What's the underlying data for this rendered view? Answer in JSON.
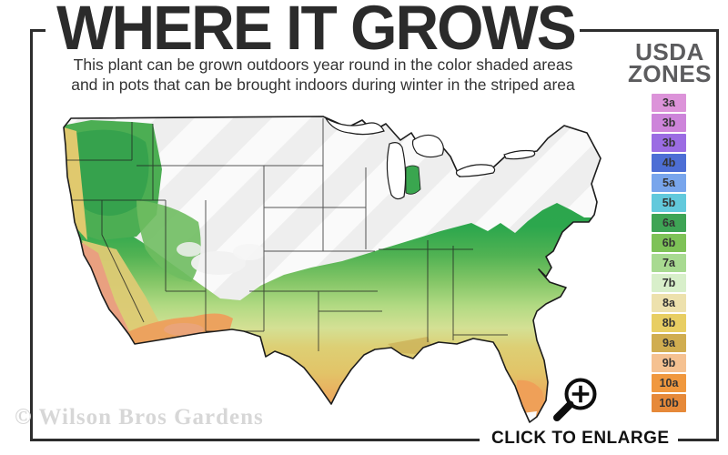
{
  "title": "WHERE IT GROWS",
  "subtitle": {
    "line1": "This plant can be grown outdoors year round in the color shaded areas",
    "line2": "and in pots that can be brought indoors during winter in the striped area"
  },
  "legend": {
    "heading_line1": "USDA",
    "heading_line2": "ZONES",
    "zones": [
      {
        "label": "3a",
        "color": "#dc93d9"
      },
      {
        "label": "3b",
        "color": "#cd84da"
      },
      {
        "label": "3b",
        "color": "#9b6ce3"
      },
      {
        "label": "4b",
        "color": "#4d6ed5"
      },
      {
        "label": "5a",
        "color": "#78a5ec"
      },
      {
        "label": "5b",
        "color": "#62c9dc"
      },
      {
        "label": "6a",
        "color": "#3ea455"
      },
      {
        "label": "6b",
        "color": "#7ec257"
      },
      {
        "label": "7a",
        "color": "#a8da91"
      },
      {
        "label": "7b",
        "color": "#d8efca"
      },
      {
        "label": "8a",
        "color": "#ede1ad"
      },
      {
        "label": "8b",
        "color": "#e8ce63"
      },
      {
        "label": "9a",
        "color": "#d0ad50"
      },
      {
        "label": "9b",
        "color": "#f5c191"
      },
      {
        "label": "10a",
        "color": "#f0983e"
      },
      {
        "label": "10b",
        "color": "#e68939"
      }
    ]
  },
  "watermark": "© Wilson Bros Gardens",
  "enlarge_label": "CLICK TO ENLARGE",
  "colors": {
    "frame": "#2d2d2d",
    "title_text": "#2b2b2b",
    "subtitle_text": "#333333",
    "legend_heading": "#5c5c5e",
    "watermark_text": "#d7d7d7",
    "map_striped_base": "#efefef",
    "map_dark_green": "#2aa14b",
    "map_yellow": "#ddcf74",
    "map_orange": "#ef9d52",
    "map_salmon": "#e9a080"
  }
}
